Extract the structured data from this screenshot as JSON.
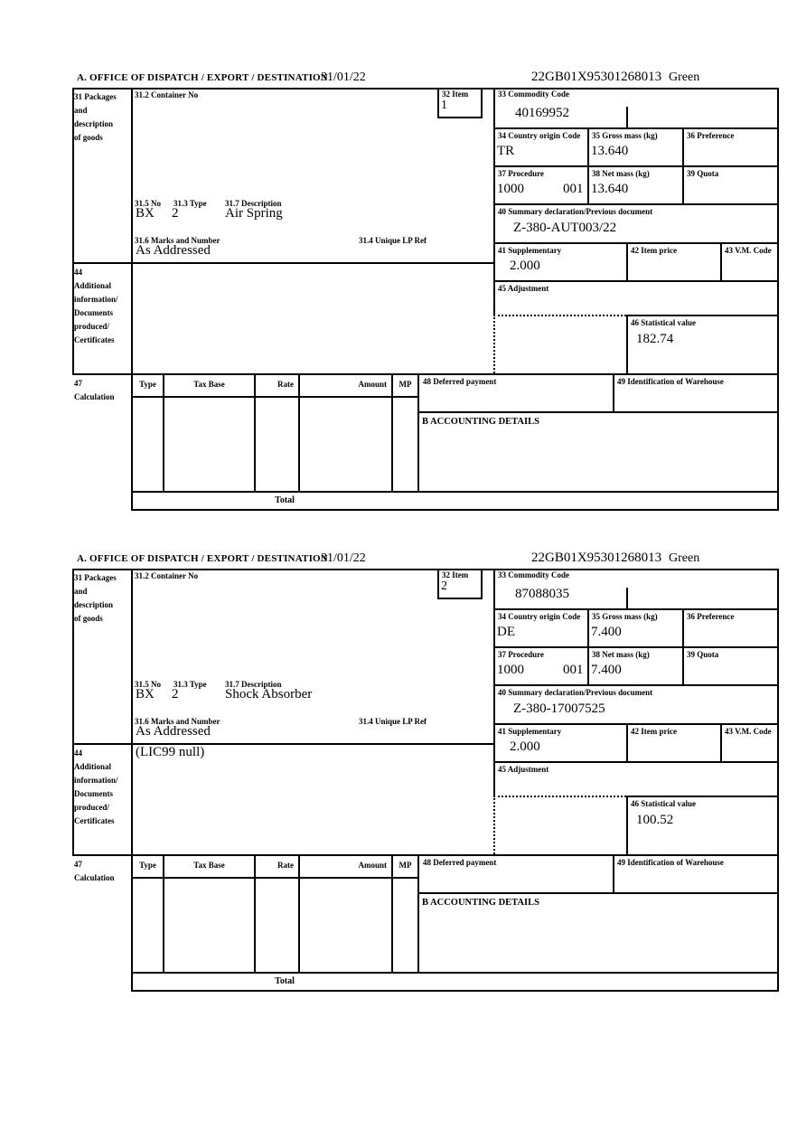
{
  "header": {
    "title": "A.  OFFICE OF DISPATCH / EXPORT / DESTINATION",
    "date": "31/01/22",
    "mrn": "22GB01X95301268013",
    "status": "Green"
  },
  "labels": {
    "box31": "31 Packages\nand\ndescription\nof goods",
    "box31_2": "31.2 Container No",
    "box32": "32 Item",
    "box33": "33 Commodity Code",
    "box34": "34 Country origin Code",
    "box35": "35 Gross mass (kg)",
    "box36": "36 Preference",
    "box37": "37 Procedure",
    "box38": "38 Net mass (kg)",
    "box39": "39 Quota",
    "box31_5": "31.5 No",
    "box31_3": "31.3 Type",
    "box31_7": "31.7 Description",
    "box31_6": "31.6 Marks and Number",
    "box31_4": "31.4 Unique LP Ref",
    "box40": "40 Summary declaration/Previous document",
    "box41": "41 Supplementary",
    "box42": "42 Item price",
    "box43": "43 V.M. Code",
    "box44": "44\nAdditional\ninformation/\nDocuments\nproduced/\nCertificates",
    "box45": "45 Adjustment",
    "box46": "46 Statistical value",
    "box47": "47\nCalculation",
    "box48": "48 Deferred payment",
    "box49": "49 Identification of Warehouse",
    "accounting": "B ACCOUNTING DETAILS",
    "total": "Total",
    "columns": {
      "type": "Type",
      "tax_base": "Tax Base",
      "rate": "Rate",
      "amount": "Amount",
      "mp": "MP"
    }
  },
  "sections": [
    {
      "item_no": "1",
      "commodity_code": "40169952",
      "country_origin": "TR",
      "gross_mass": "13.640",
      "net_mass": "13.640",
      "procedure_1": "1000",
      "procedure_2": "001",
      "previous_document": "Z-380-AUT003/22",
      "supplementary": "2.000",
      "statistical_value": "182.74",
      "package_no": "BX",
      "package_type": "2",
      "description": "Air Spring",
      "marks": "As Addressed",
      "additional_info": ""
    },
    {
      "item_no": "2",
      "commodity_code": "87088035",
      "country_origin": "DE",
      "gross_mass": "7.400",
      "net_mass": "7.400",
      "procedure_1": "1000",
      "procedure_2": "001",
      "previous_document": "Z-380-17007525",
      "supplementary": "2.000",
      "statistical_value": "100.52",
      "package_no": "BX",
      "package_type": "2",
      "description": "Shock Absorber",
      "marks": "As Addressed",
      "additional_info": "(LIC99 null)"
    }
  ]
}
